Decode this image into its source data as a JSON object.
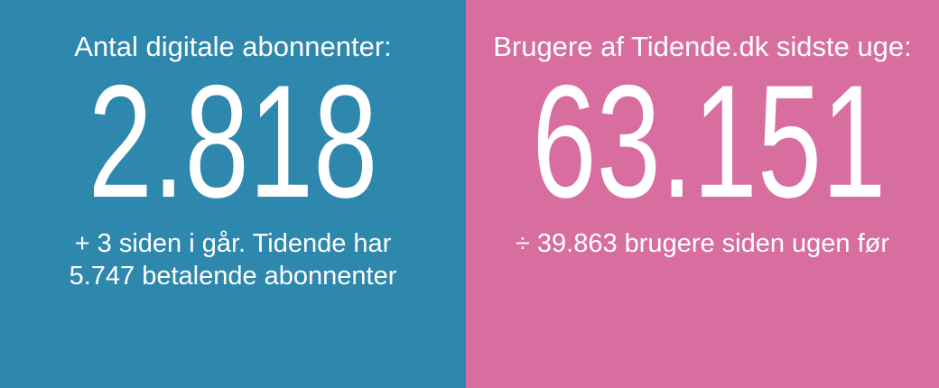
{
  "left_panel": {
    "label": "Antal digitale abonnenter:",
    "value": "2.818",
    "line1": "+ 3 siden i går. Tidende har",
    "line2": "5.747 betalende abonnenter",
    "background": "#2e88ad"
  },
  "right_panel": {
    "label": "Brugere af Tidende.dk sidste uge:",
    "value": "63.151",
    "line1": "÷ 39.863 brugere siden ugen før",
    "background": "#d86e9f"
  }
}
